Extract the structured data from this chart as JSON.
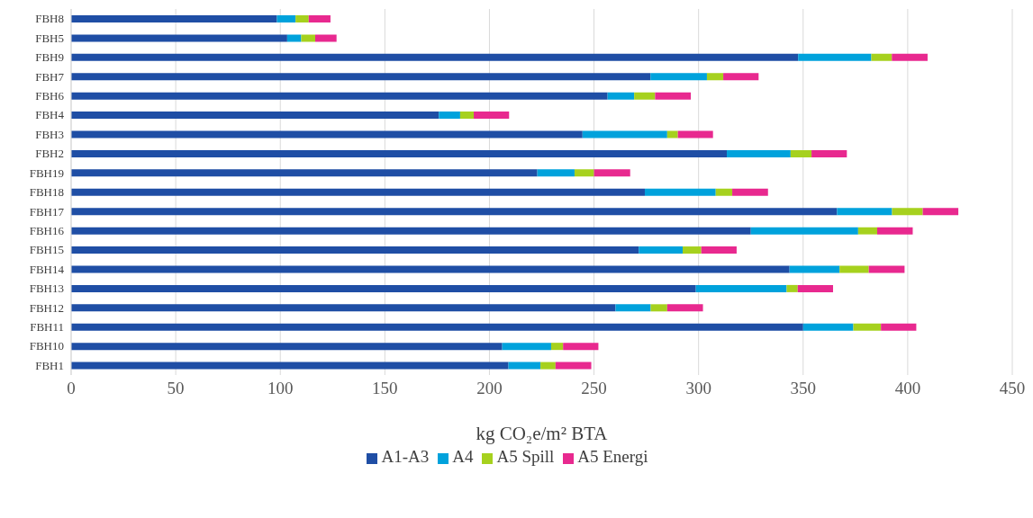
{
  "chart_data": {
    "type": "bar",
    "orientation": "horizontal",
    "stacked": true,
    "xlabel": "kg CO₂e/m² BTA",
    "categories": [
      "FBH8",
      "FBH5",
      "FBH9",
      "FBH7",
      "FBH6",
      "FBH4",
      "FBH3",
      "FBH2",
      "FBH19",
      "FBH18",
      "FBH17",
      "FBH16",
      "FBH15",
      "FBH14",
      "FBH13",
      "FBH12",
      "FBH11",
      "FBH10",
      "FBH1"
    ],
    "series": [
      {
        "name": "A1-A3",
        "color": "#1f4ea5",
        "values": [
          98.4,
          103.3,
          347.6,
          277,
          256.5,
          175.8,
          244.5,
          313.5,
          222.9,
          274.3,
          366.2,
          325,
          271.4,
          343.5,
          298.7,
          260.3,
          350,
          206.1,
          209.1
        ]
      },
      {
        "name": "A4",
        "color": "#00a2dc",
        "values": [
          8.9,
          6.7,
          35,
          27,
          12.7,
          10.2,
          40.5,
          30.5,
          17.8,
          33.9,
          26.3,
          51.3,
          21,
          23.9,
          43.4,
          16.8,
          24,
          23.4,
          15.3
        ]
      },
      {
        "name": "A5 Spill",
        "color": "#a6d11e",
        "values": [
          6.3,
          6.7,
          9.8,
          7.8,
          10,
          6.5,
          5.1,
          10,
          9.3,
          7.9,
          14.7,
          9.1,
          8.9,
          14,
          5.3,
          7.9,
          13.2,
          5.7,
          7.2
        ]
      },
      {
        "name": "A5 Energi",
        "color": "#e8298f",
        "values": [
          10.4,
          10.2,
          17.1,
          16.9,
          17.1,
          16.9,
          16.8,
          16.9,
          17.3,
          17.1,
          17,
          17,
          16.9,
          17.1,
          16.9,
          17.1,
          16.9,
          16.9,
          17.1
        ]
      }
    ],
    "xlim": [
      0,
      450
    ],
    "xticks": [
      0,
      50,
      100,
      150,
      200,
      250,
      300,
      350,
      400,
      450
    ],
    "grid": "x",
    "legend": "bottom"
  }
}
